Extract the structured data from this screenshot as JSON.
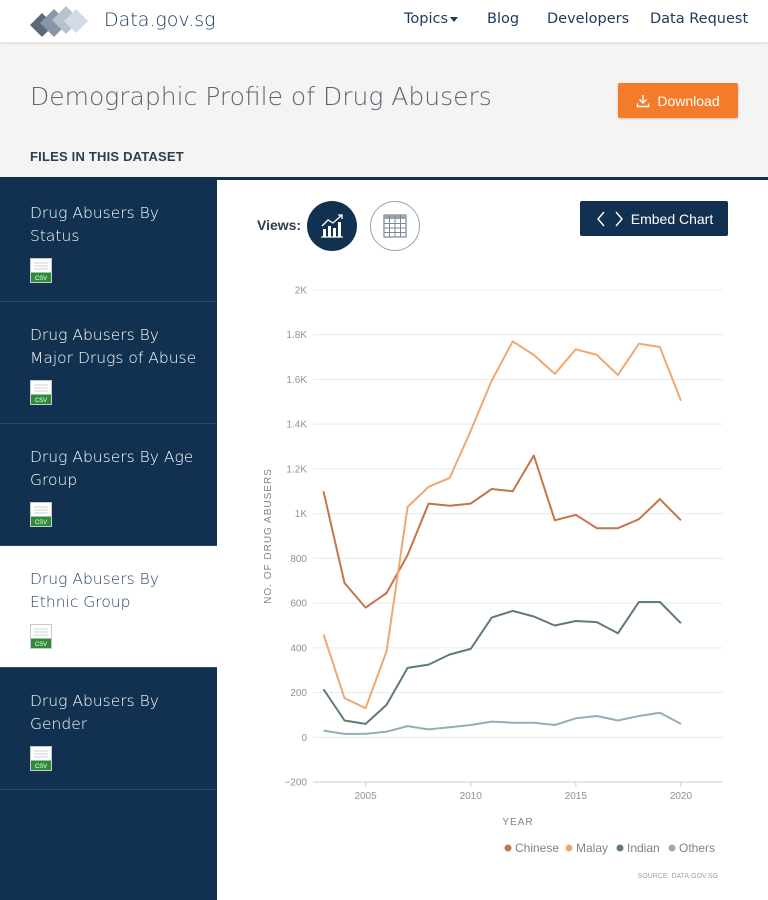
{
  "header": {
    "brand": "Data.gov.sg",
    "nav": [
      "Topics",
      "Blog",
      "Developers",
      "Data Request"
    ]
  },
  "page": {
    "title": "Demographic Profile of Drug Abusers",
    "download_label": "Download",
    "files_heading": "FILES IN THIS DATASET"
  },
  "sidebar": {
    "items": [
      {
        "label": "Drug Abusers By Status",
        "active": false
      },
      {
        "label": "Drug Abusers By Major Drugs of Abuse",
        "active": false
      },
      {
        "label": "Drug Abusers By Age Group",
        "active": false
      },
      {
        "label": "Drug Abusers By Ethnic Group",
        "active": true
      },
      {
        "label": "Drug Abusers By Gender",
        "active": false
      }
    ],
    "file_badge": "CSV"
  },
  "main": {
    "views_label": "Views:",
    "embed_label": "Embed Chart"
  },
  "colors": {
    "navy": "#12304f",
    "accent": "#f47b2a"
  },
  "icons": [
    "logo-icon",
    "download-icon",
    "line-chart-icon",
    "table-icon",
    "code-brackets-icon",
    "csv-file-icon"
  ],
  "chart_data": {
    "type": "line",
    "title": "",
    "xlabel": "YEAR",
    "ylabel": "NO. OF DRUG ABUSERS",
    "xlim": [
      2002.5,
      2022
    ],
    "ylim": [
      -200,
      2000
    ],
    "x_ticks": [
      "2005",
      "2010",
      "2015",
      "2020"
    ],
    "y_ticks": [
      "−200",
      "0",
      "200",
      "400",
      "600",
      "800",
      "1K",
      "1.2K",
      "1.4K",
      "1.6K",
      "1.8K",
      "2K"
    ],
    "grid": true,
    "legend_position": "bottom-right",
    "source": "SOURCE: DATA.GOV.SG",
    "x": [
      2003,
      2004,
      2005,
      2006,
      2007,
      2008,
      2009,
      2010,
      2011,
      2012,
      2013,
      2014,
      2015,
      2016,
      2017,
      2018,
      2019,
      2020
    ],
    "series": [
      {
        "name": "Chinese",
        "color": "#c6744a",
        "values": [
          1100,
          690,
          580,
          645,
          815,
          1045,
          1035,
          1045,
          1110,
          1100,
          1260,
          970,
          995,
          935,
          935,
          975,
          1065,
          970
        ]
      },
      {
        "name": "Malay",
        "color": "#f0a870",
        "values": [
          460,
          175,
          130,
          385,
          1030,
          1120,
          1160,
          1370,
          1595,
          1770,
          1710,
          1625,
          1735,
          1710,
          1620,
          1760,
          1745,
          1505
        ]
      },
      {
        "name": "Indian",
        "color": "#5e7b74",
        "values": [
          215,
          75,
          60,
          145,
          310,
          325,
          370,
          395,
          535,
          565,
          540,
          500,
          520,
          515,
          465,
          605,
          605,
          510
        ]
      },
      {
        "name": "Others",
        "color": "#93aeb6",
        "values": [
          30,
          15,
          15,
          25,
          50,
          35,
          45,
          55,
          70,
          65,
          65,
          55,
          85,
          95,
          75,
          95,
          110,
          60
        ]
      }
    ]
  }
}
